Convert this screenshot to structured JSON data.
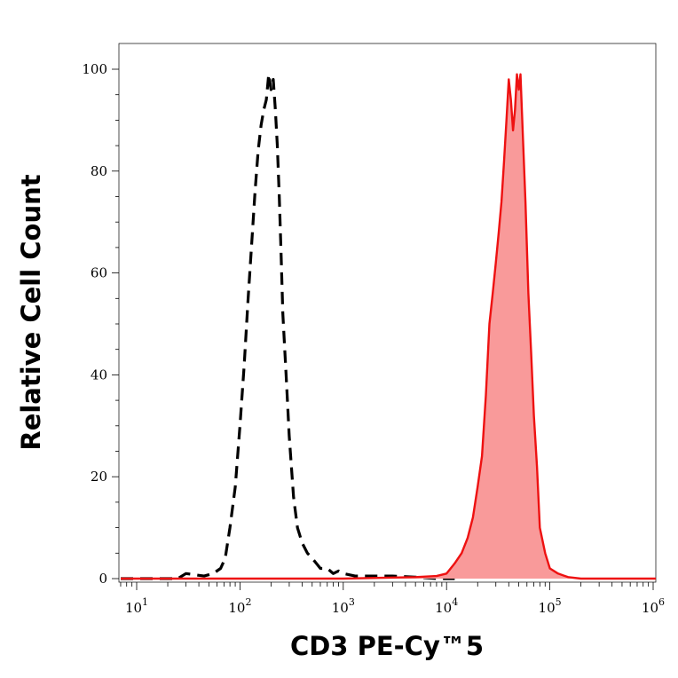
{
  "chart_data": {
    "type": "area",
    "xlabel": "CD3 PE-Cy™5",
    "ylabel": "Relative Cell Count",
    "x_scale": "log",
    "xlim": [
      7,
      1200000
    ],
    "ylim": [
      0,
      100
    ],
    "x_ticks": [
      {
        "base": "10",
        "exp": "1",
        "value": 10
      },
      {
        "base": "10",
        "exp": "2",
        "value": 100
      },
      {
        "base": "10",
        "exp": "3",
        "value": 1000
      },
      {
        "base": "10",
        "exp": "4",
        "value": 10000
      },
      {
        "base": "10",
        "exp": "5",
        "value": 100000
      },
      {
        "base": "10",
        "exp": "6",
        "value": 1000000
      }
    ],
    "y_ticks": [
      "0",
      "20",
      "40",
      "60",
      "80",
      "100"
    ],
    "grid": false,
    "legend": "none",
    "series": [
      {
        "style": "dashed",
        "color": "#000000",
        "filled": false,
        "x": [
          7,
          25,
          30,
          45,
          55,
          65,
          72,
          80,
          90,
          100,
          110,
          120,
          130,
          140,
          150,
          160,
          170,
          180,
          190,
          200,
          210,
          220,
          230,
          240,
          250,
          260,
          280,
          300,
          330,
          360,
          400,
          450,
          500,
          600,
          700,
          800,
          900,
          1000,
          1300,
          2000,
          3000,
          5000,
          8000,
          12000
        ],
        "y": [
          0,
          0,
          1,
          0.5,
          1,
          2,
          4,
          10,
          18,
          30,
          42,
          55,
          66,
          76,
          84,
          89,
          92,
          94,
          99,
          96,
          98,
          92,
          85,
          75,
          64,
          52,
          40,
          28,
          16,
          10,
          7,
          5,
          4,
          2,
          2,
          1,
          1.5,
          1,
          0.5,
          0.5,
          0.5,
          0.3,
          0,
          0
        ]
      },
      {
        "style": "solid",
        "color": "#ee1111",
        "fill": "#f99a9a",
        "filled": true,
        "x": [
          7,
          100,
          1000,
          5000,
          8000,
          10000,
          12000,
          14000,
          16000,
          18000,
          20000,
          22000,
          24000,
          26000,
          28000,
          30000,
          32000,
          34000,
          36000,
          38000,
          40000,
          42000,
          44000,
          46000,
          48000,
          50000,
          52000,
          55000,
          58000,
          62000,
          66000,
          70000,
          75000,
          80000,
          90000,
          100000,
          120000,
          150000,
          200000,
          400000,
          1000000,
          1200000
        ],
        "y": [
          0,
          0,
          0,
          0.3,
          0.5,
          1,
          3,
          5,
          8,
          12,
          18,
          24,
          36,
          50,
          56,
          62,
          68,
          74,
          82,
          90,
          98,
          94,
          88,
          92,
          99,
          96,
          99,
          86,
          74,
          56,
          44,
          32,
          22,
          10,
          5,
          2,
          1,
          0.3,
          0,
          0,
          0,
          0
        ]
      }
    ]
  }
}
